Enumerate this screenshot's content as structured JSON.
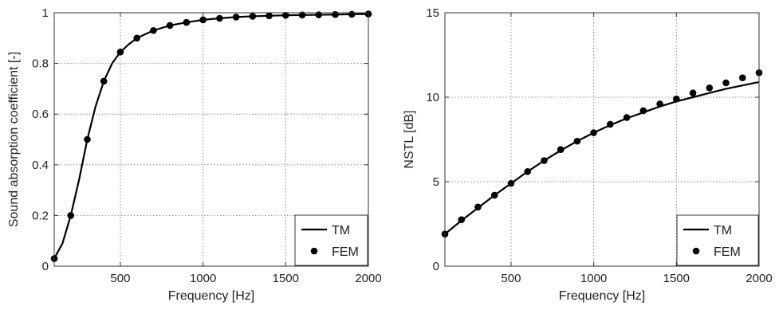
{
  "chart_data": [
    {
      "type": "line",
      "xlabel": "Frequency [Hz]",
      "ylabel": "Sound absorption coefficient [-]",
      "xlim": [
        100,
        2000
      ],
      "ylim": [
        0,
        1
      ],
      "xticks": [
        500,
        1000,
        1500,
        2000
      ],
      "yticks": [
        0,
        0.2,
        0.4,
        0.6,
        0.8,
        1
      ],
      "ytick_labels": [
        "0",
        "0.2",
        "0.4",
        "0.6",
        "0.8",
        "1"
      ],
      "grid": true,
      "legend_position": "bottom-right",
      "series": [
        {
          "name": "TM",
          "style": "line",
          "x": [
            100,
            150,
            200,
            250,
            300,
            350,
            400,
            450,
            500,
            550,
            600,
            700,
            800,
            900,
            1000,
            1100,
            1200,
            1300,
            1400,
            1500,
            1600,
            1700,
            1800,
            1900,
            2000
          ],
          "y": [
            0.03,
            0.09,
            0.2,
            0.34,
            0.5,
            0.63,
            0.73,
            0.8,
            0.845,
            0.875,
            0.9,
            0.93,
            0.95,
            0.962,
            0.972,
            0.978,
            0.983,
            0.986,
            0.988,
            0.99,
            0.991,
            0.992,
            0.993,
            0.994,
            0.995
          ]
        },
        {
          "name": "FEM",
          "style": "markers",
          "x": [
            100,
            200,
            300,
            400,
            500,
            600,
            700,
            800,
            900,
            1000,
            1100,
            1200,
            1300,
            1400,
            1500,
            1600,
            1700,
            1800,
            1900,
            2000
          ],
          "y": [
            0.03,
            0.2,
            0.5,
            0.73,
            0.845,
            0.9,
            0.93,
            0.95,
            0.962,
            0.972,
            0.978,
            0.983,
            0.986,
            0.988,
            0.99,
            0.991,
            0.992,
            0.993,
            0.994,
            0.995
          ]
        }
      ]
    },
    {
      "type": "line",
      "xlabel": "Frequency [Hz]",
      "ylabel": "NSTL [dB]",
      "xlim": [
        100,
        2000
      ],
      "ylim": [
        0,
        15
      ],
      "xticks": [
        500,
        1000,
        1500,
        2000
      ],
      "yticks": [
        0,
        5,
        10,
        15
      ],
      "ytick_labels": [
        "0",
        "5",
        "10",
        "15"
      ],
      "grid": true,
      "legend_position": "bottom-right",
      "series": [
        {
          "name": "TM",
          "style": "line",
          "x": [
            100,
            200,
            300,
            400,
            500,
            600,
            700,
            800,
            900,
            1000,
            1100,
            1200,
            1300,
            1400,
            1500,
            1600,
            1700,
            1800,
            1900,
            2000
          ],
          "y": [
            1.9,
            2.7,
            3.45,
            4.2,
            4.9,
            5.6,
            6.25,
            6.85,
            7.4,
            7.9,
            8.35,
            8.75,
            9.1,
            9.45,
            9.75,
            10.0,
            10.25,
            10.5,
            10.7,
            10.9
          ]
        },
        {
          "name": "FEM",
          "style": "markers",
          "x": [
            100,
            200,
            300,
            400,
            500,
            600,
            700,
            800,
            900,
            1000,
            1100,
            1200,
            1300,
            1400,
            1500,
            1600,
            1700,
            1800,
            1900,
            2000
          ],
          "y": [
            1.9,
            2.75,
            3.5,
            4.2,
            4.9,
            5.6,
            6.25,
            6.9,
            7.4,
            7.9,
            8.4,
            8.8,
            9.2,
            9.6,
            9.9,
            10.25,
            10.55,
            10.85,
            11.15,
            11.45
          ]
        }
      ]
    }
  ]
}
